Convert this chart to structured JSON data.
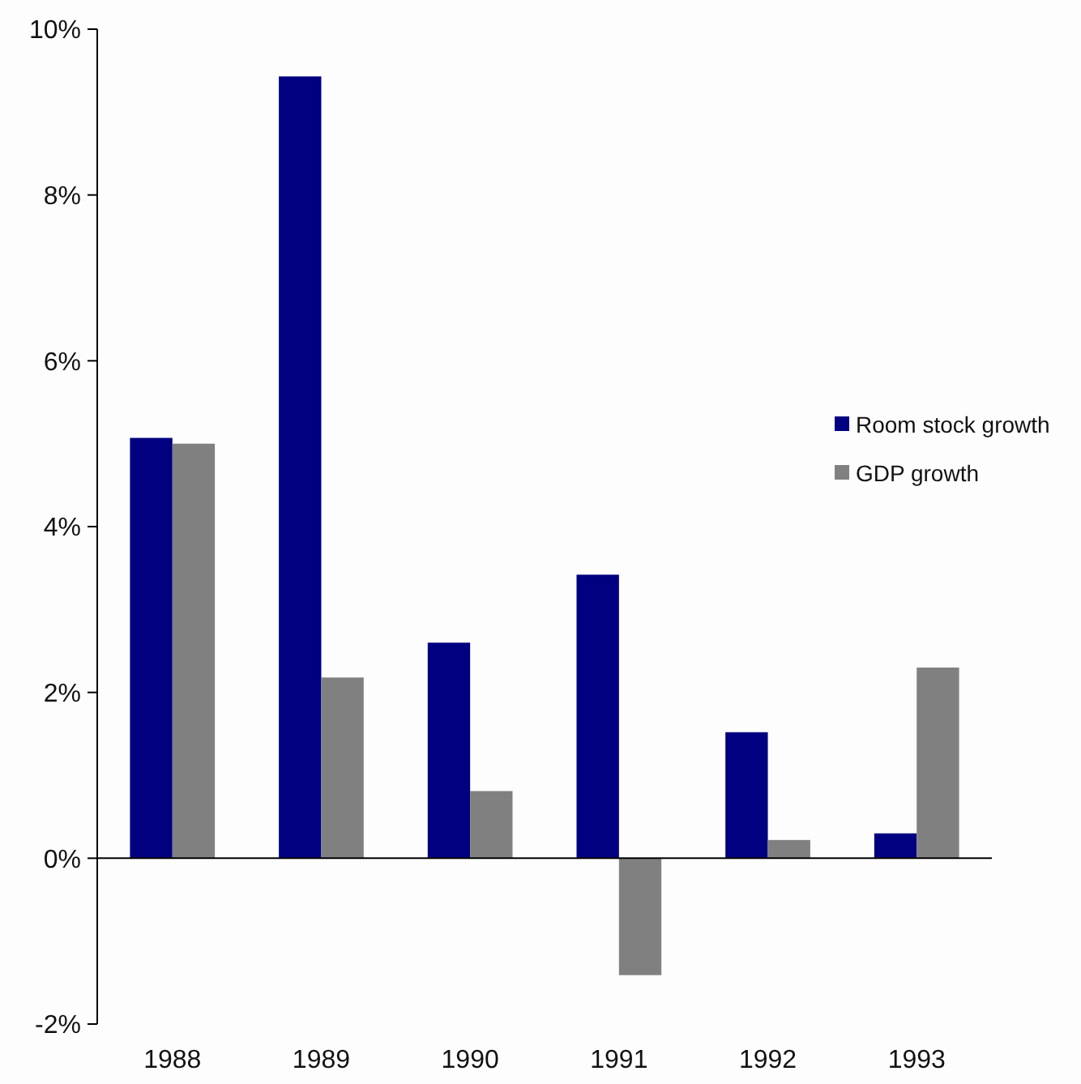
{
  "chart_data": {
    "type": "bar",
    "categories": [
      "1988",
      "1989",
      "1990",
      "1991",
      "1992",
      "1993"
    ],
    "series": [
      {
        "name": "Room stock growth",
        "color": "#000080",
        "values": [
          5.07,
          9.43,
          2.6,
          3.42,
          1.52,
          0.3
        ]
      },
      {
        "name": "GDP growth",
        "color": "#808080",
        "values": [
          5.0,
          2.18,
          0.81,
          -1.41,
          0.22,
          2.3
        ]
      }
    ],
    "ylim": [
      -2,
      10
    ],
    "yticks": [
      {
        "value": -2,
        "label": "-2%"
      },
      {
        "value": 0,
        "label": "0%"
      },
      {
        "value": 2,
        "label": "2%"
      },
      {
        "value": 4,
        "label": "4%"
      },
      {
        "value": 6,
        "label": "6%"
      },
      {
        "value": 8,
        "label": "8%"
      },
      {
        "value": 10,
        "label": "10%"
      }
    ],
    "legend": "right"
  }
}
